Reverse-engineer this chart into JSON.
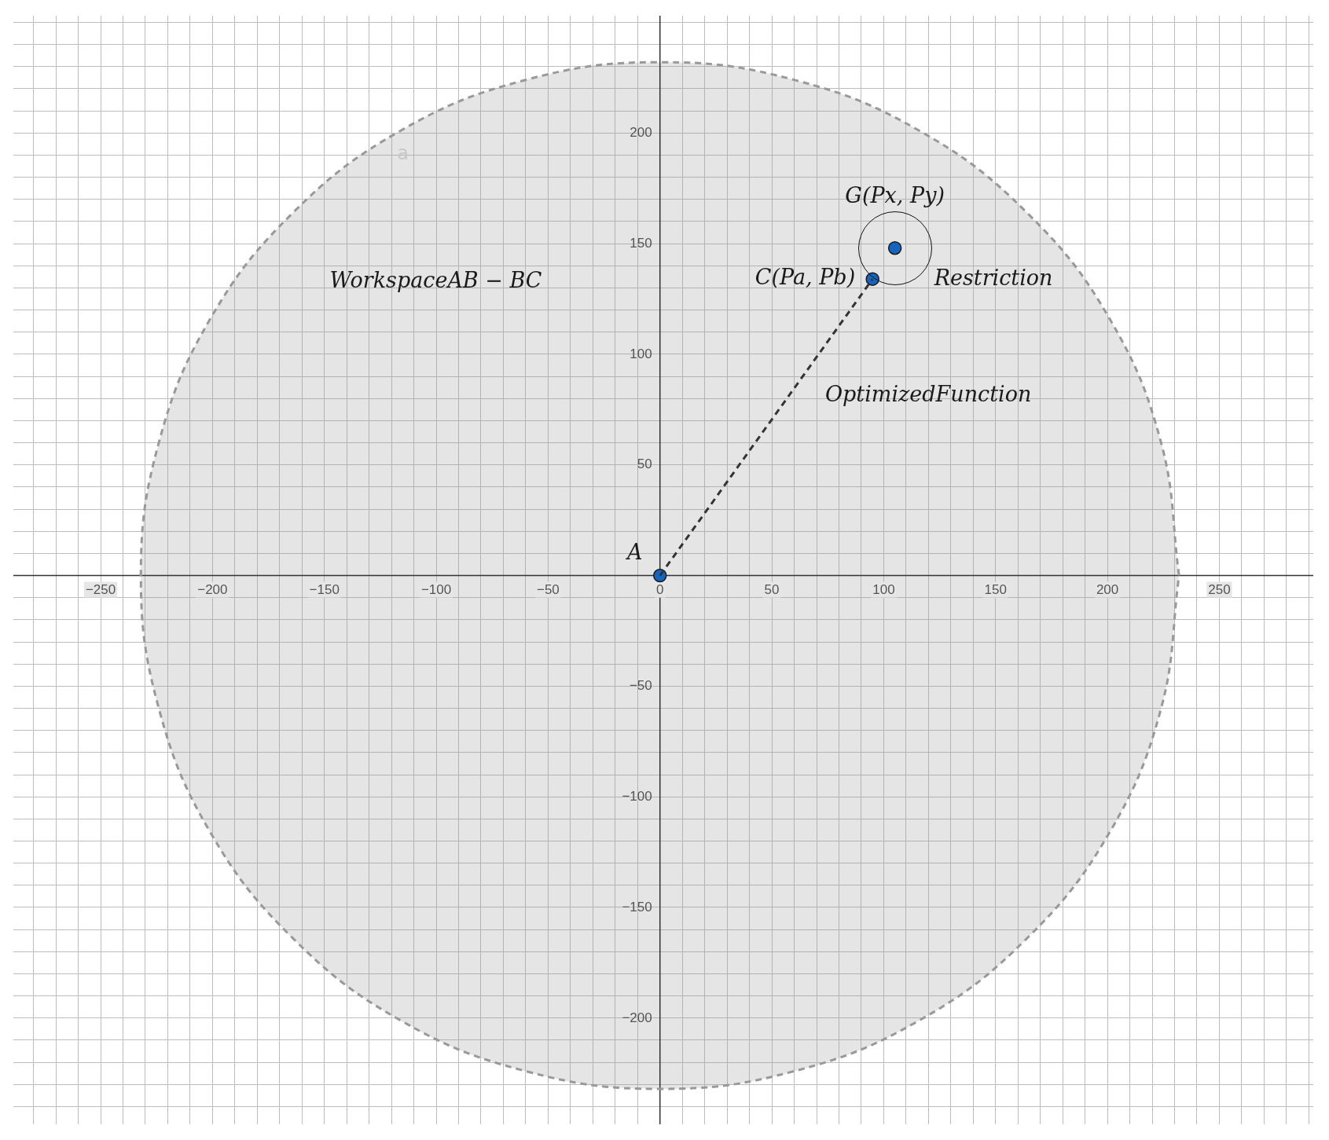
{
  "chart_data": {
    "type": "scatter",
    "xlim": [
      -289,
      292
    ],
    "ylim": [
      -248,
      253
    ],
    "xticks": [
      {
        "value": -280,
        "label": null
      },
      {
        "value": -270,
        "label": null
      },
      {
        "value": -260,
        "label": null
      },
      {
        "value": -250,
        "label": "−250"
      },
      {
        "value": -240,
        "label": null
      },
      {
        "value": -230,
        "label": null
      },
      {
        "value": -220,
        "label": null
      },
      {
        "value": -210,
        "label": null
      },
      {
        "value": -200,
        "label": "−200"
      },
      {
        "value": -190,
        "label": null
      },
      {
        "value": -180,
        "label": null
      },
      {
        "value": -170,
        "label": null
      },
      {
        "value": -160,
        "label": null
      },
      {
        "value": -150,
        "label": "−150"
      },
      {
        "value": -140,
        "label": null
      },
      {
        "value": -130,
        "label": null
      },
      {
        "value": -120,
        "label": null
      },
      {
        "value": -110,
        "label": null
      },
      {
        "value": -100,
        "label": "−100"
      },
      {
        "value": -90,
        "label": null
      },
      {
        "value": -80,
        "label": null
      },
      {
        "value": -70,
        "label": null
      },
      {
        "value": -60,
        "label": null
      },
      {
        "value": -50,
        "label": "−50"
      },
      {
        "value": -40,
        "label": null
      },
      {
        "value": -30,
        "label": null
      },
      {
        "value": -20,
        "label": null
      },
      {
        "value": -10,
        "label": null
      },
      0,
      {
        "value": 10,
        "label": null
      },
      {
        "value": 20,
        "label": null
      },
      {
        "value": 30,
        "label": null
      },
      {
        "value": 40,
        "label": null
      },
      50,
      {
        "value": 60,
        "label": null
      },
      {
        "value": 70,
        "label": null
      },
      {
        "value": 80,
        "label": null
      },
      {
        "value": 90,
        "label": null
      },
      100,
      {
        "value": 110,
        "label": null
      },
      {
        "value": 120,
        "label": null
      },
      {
        "value": 130,
        "label": null
      },
      {
        "value": 140,
        "label": null
      },
      150,
      {
        "value": 160,
        "label": null
      },
      {
        "value": 170,
        "label": null
      },
      {
        "value": 180,
        "label": null
      },
      {
        "value": 190,
        "label": null
      },
      200,
      {
        "value": 210,
        "label": null
      },
      {
        "value": 220,
        "label": null
      },
      {
        "value": 230,
        "label": null
      },
      {
        "value": 240,
        "label": null
      },
      250,
      {
        "value": 260,
        "label": null
      },
      {
        "value": 270,
        "label": null
      },
      {
        "value": 280,
        "label": null
      },
      {
        "value": 290,
        "label": null
      }
    ],
    "yticks": [
      {
        "value": -240,
        "label": null
      },
      {
        "value": -230,
        "label": null
      },
      {
        "value": -220,
        "label": null
      },
      {
        "value": -210,
        "label": null
      },
      {
        "value": -200,
        "label": "−200"
      },
      {
        "value": -190,
        "label": null
      },
      {
        "value": -180,
        "label": null
      },
      {
        "value": -170,
        "label": null
      },
      {
        "value": -160,
        "label": null
      },
      {
        "value": -150,
        "label": "−150"
      },
      {
        "value": -140,
        "label": null
      },
      {
        "value": -130,
        "label": null
      },
      {
        "value": -120,
        "label": null
      },
      {
        "value": -110,
        "label": null
      },
      {
        "value": -100,
        "label": "−100"
      },
      {
        "value": -90,
        "label": null
      },
      {
        "value": -80,
        "label": null
      },
      {
        "value": -70,
        "label": null
      },
      {
        "value": -60,
        "label": null
      },
      {
        "value": -50,
        "label": "−50"
      },
      {
        "value": -40,
        "label": null
      },
      {
        "value": -30,
        "label": null
      },
      {
        "value": -20,
        "label": null
      },
      {
        "value": -10,
        "label": null
      },
      {
        "value": 0,
        "label": null
      },
      {
        "value": 10,
        "label": null
      },
      {
        "value": 20,
        "label": null
      },
      {
        "value": 30,
        "label": null
      },
      {
        "value": 40,
        "label": null
      },
      50,
      {
        "value": 60,
        "label": null
      },
      {
        "value": 70,
        "label": null
      },
      {
        "value": 80,
        "label": null
      },
      {
        "value": 90,
        "label": null
      },
      100,
      {
        "value": 110,
        "label": null
      },
      {
        "value": 120,
        "label": null
      },
      {
        "value": 130,
        "label": null
      },
      {
        "value": 140,
        "label": null
      },
      150,
      {
        "value": 160,
        "label": null
      },
      {
        "value": 170,
        "label": null
      },
      {
        "value": 180,
        "label": null
      },
      {
        "value": 190,
        "label": null
      },
      200,
      {
        "value": 210,
        "label": null
      },
      {
        "value": 220,
        "label": null
      },
      {
        "value": 230,
        "label": null
      },
      {
        "value": 240,
        "label": null
      },
      {
        "value": 250,
        "label": null
      }
    ],
    "grid": true,
    "legend": false,
    "series": [
      {
        "type": "area",
        "name": "a",
        "color": "#999999",
        "line_style": "dashed",
        "marker": "none",
        "x": [
          232,
          224,
          201,
          164,
          116,
          60,
          0,
          -60,
          -116,
          -164,
          -201,
          -224,
          -232,
          -224,
          -201,
          -164,
          -116,
          -60,
          0,
          60,
          116,
          164,
          201,
          224,
          232
        ],
        "values": [
          0,
          60,
          116,
          164,
          201,
          224,
          232,
          224,
          201,
          164,
          116,
          60,
          0,
          -60,
          -116,
          -164,
          -201,
          -224,
          -232,
          -224,
          -201,
          -164,
          -116,
          -60,
          0
        ]
      },
      {
        "type": "line",
        "color": "#333333",
        "line_style": "dashed",
        "marker": "none",
        "x": [
          0,
          95
        ],
        "values": [
          0,
          134
        ]
      },
      {
        "type": "scatter",
        "color": "#1565c0",
        "marker": "circle",
        "x": [
          0,
          95,
          105
        ],
        "values": [
          0,
          134,
          148
        ]
      }
    ],
    "annotations": [
      {
        "text": "A",
        "x": 0,
        "y": 0
      },
      {
        "text": "C(Pa, Pb)",
        "x": 95,
        "y": 134
      },
      {
        "text": "G(Px, Py)",
        "x": 105,
        "y": 148
      },
      "Restriction",
      {
        "text": "OptimizedFunction",
        "x": 47.5,
        "y": 67
      },
      "WorkspaceAB − BC"
    ]
  }
}
